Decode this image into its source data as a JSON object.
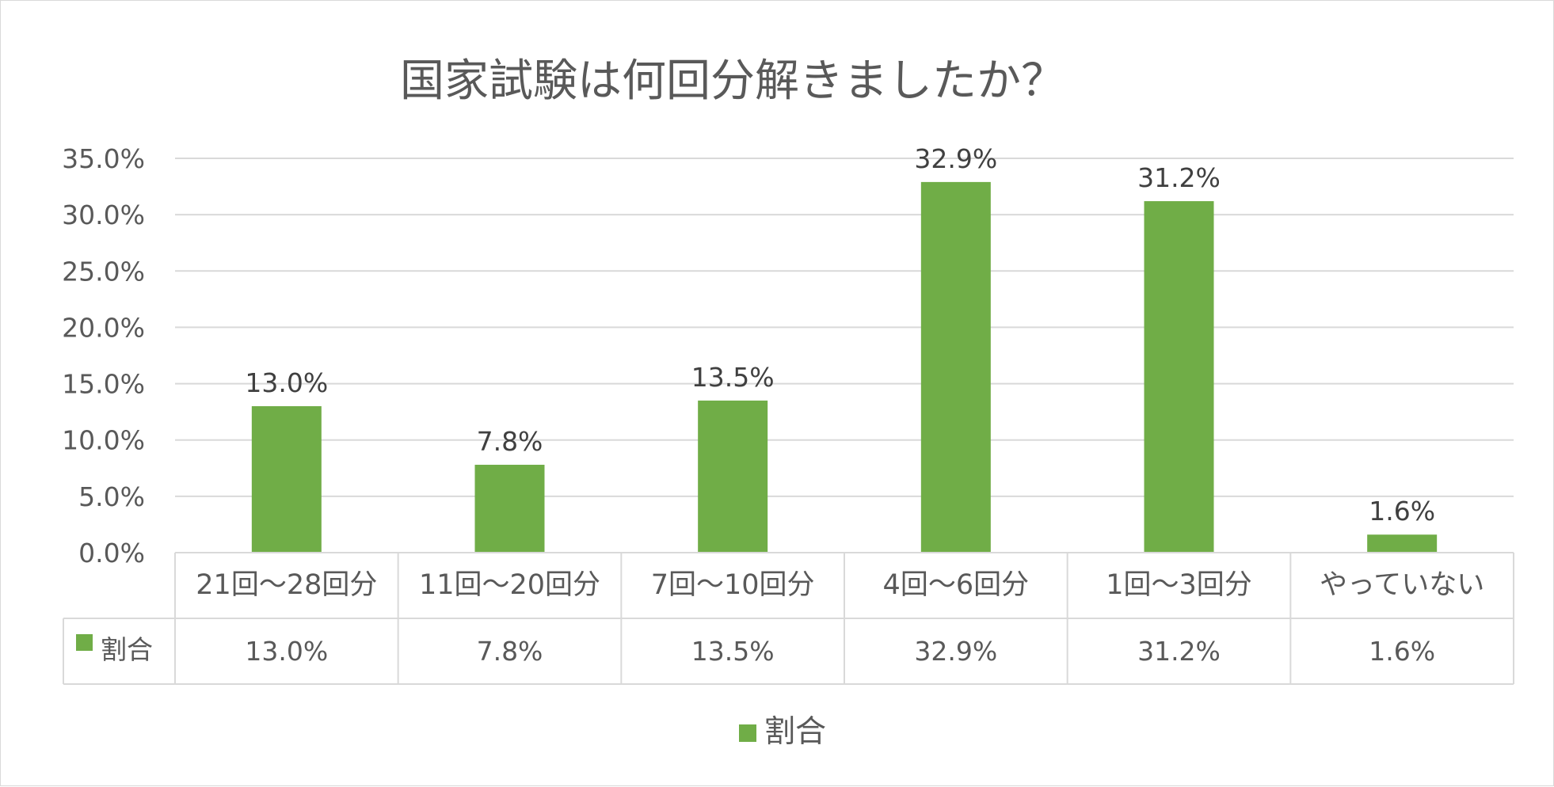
{
  "colors": {
    "bar": "#70ad47",
    "grid": "#d9d9d9",
    "text": "#595959",
    "label": "#404040"
  },
  "chart_data": {
    "type": "bar",
    "title": "国家試験は何回分解きましたか？",
    "categories": [
      "21回〜28回分",
      "11回〜20回分",
      "7回〜10回分",
      "4回〜6回分",
      "1回〜3回分",
      "やっていない"
    ],
    "series": [
      {
        "name": "割合",
        "values": [
          13.0,
          7.8,
          13.5,
          32.9,
          31.2,
          1.6
        ],
        "labels": [
          "13.0%",
          "7.8%",
          "13.5%",
          "32.9%",
          "31.2%",
          "1.6%"
        ],
        "color": "#70ad47"
      }
    ],
    "y_ticks": [
      "0.0%",
      "5.0%",
      "10.0%",
      "15.0%",
      "20.0%",
      "25.0%",
      "30.0%",
      "35.0%"
    ],
    "ylim": [
      0,
      35
    ],
    "grid": true,
    "data_table": true,
    "legend": "bottom"
  }
}
